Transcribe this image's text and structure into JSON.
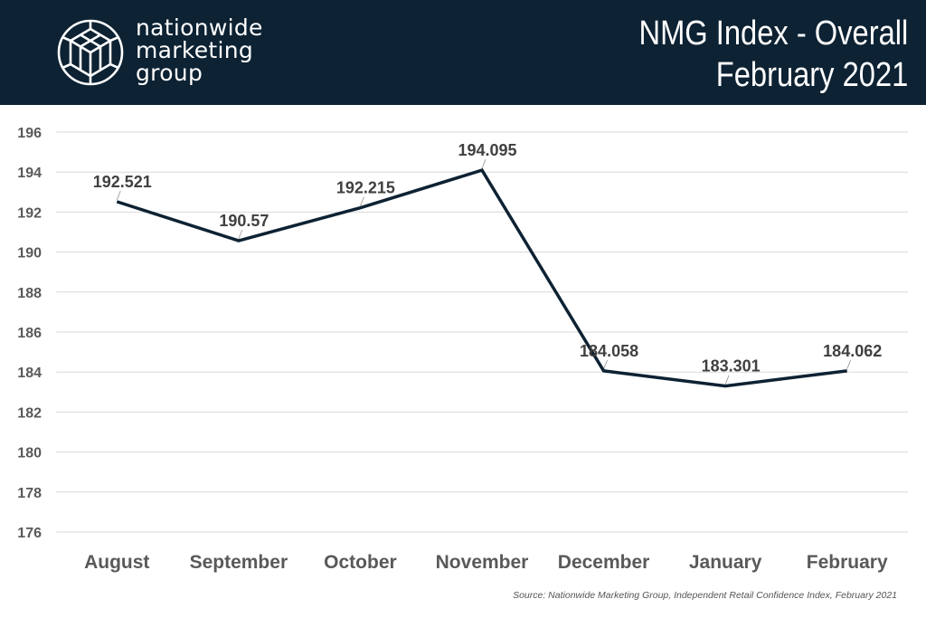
{
  "header": {
    "logo_lines": [
      "nationwide",
      "marketing",
      "group"
    ],
    "title_line1": "NMG Index - Overall",
    "title_line2": "February 2021",
    "logo_icon": "cube-network-icon",
    "background_color": "#0d2233"
  },
  "chart_data": {
    "type": "line",
    "categories": [
      "August",
      "September",
      "October",
      "November",
      "December",
      "January",
      "February"
    ],
    "values": [
      192.521,
      190.57,
      192.215,
      194.095,
      184.058,
      183.301,
      184.062
    ],
    "data_labels": [
      "192.521",
      "190.57",
      "192.215",
      "194.095",
      "184.058",
      "183.301",
      "184.062"
    ],
    "ylim": [
      176,
      196
    ],
    "yticks": [
      176,
      178,
      180,
      182,
      184,
      186,
      188,
      190,
      192,
      194,
      196
    ],
    "grid": true,
    "line_color": "#0d2233"
  },
  "source": "Source: Nationwide Marketing Group, Independent Retail Confidence Index, February 2021"
}
